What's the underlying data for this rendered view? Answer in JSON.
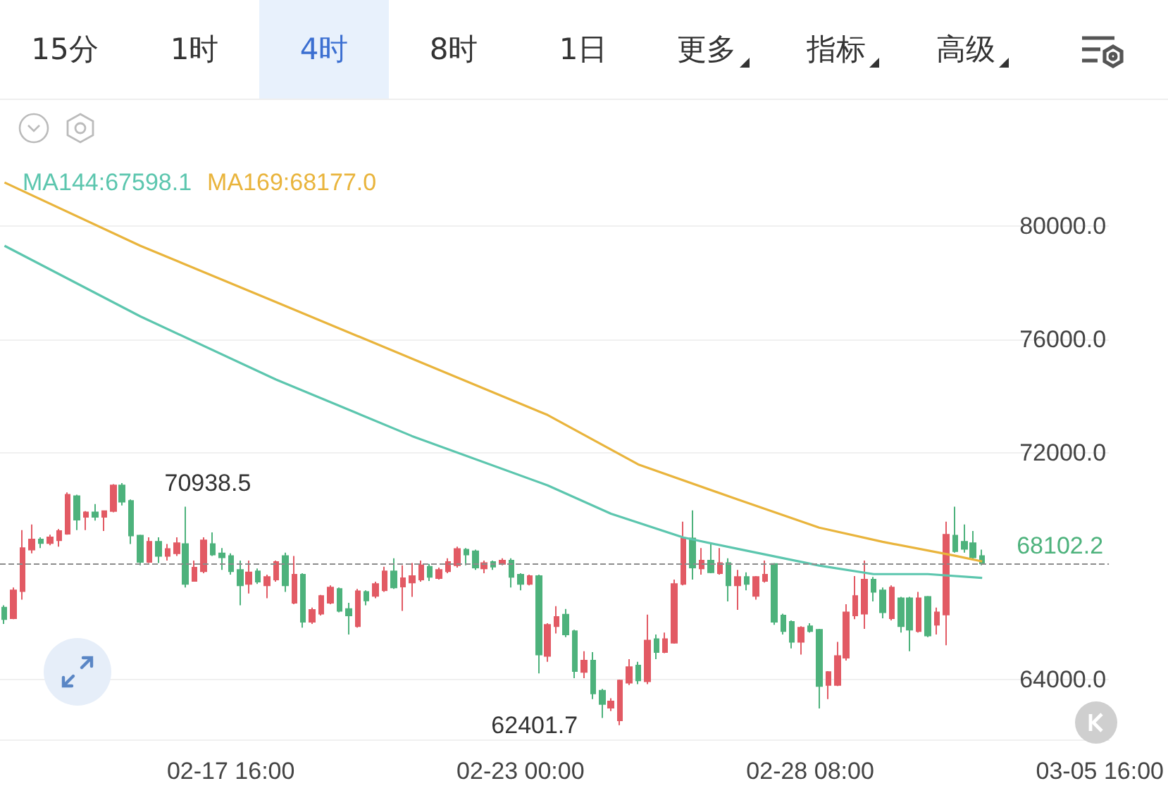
{
  "chart_data": {
    "type": "candlestick",
    "annotations": [
      "15分",
      "1时",
      "4时",
      "8时",
      "1日",
      "更多",
      "指标",
      "高级",
      {
        "text": "70938.5",
        "x": "--02-15T16:00",
        "y": 70938.5
      },
      {
        "text": "62401.7",
        "x": "--02-24T20:00",
        "y": 62401.7
      }
    ],
    "series": [
      {
        "x": [
          "--02-13T12:00",
          "--02-13T16:00",
          "--02-13T20:00",
          "--02-14T00:00",
          "--02-14T04:00",
          "--02-14T08:00",
          "--02-14T12:00",
          "--02-14T16:00",
          "--02-14T20:00",
          "--02-15T00:00",
          "--02-15T04:00",
          "--02-15T08:00",
          "--02-15T12:00",
          "--02-15T16:00",
          "--02-15T20:00",
          "--02-16T00:00",
          "--02-16T04:00",
          "--02-16T08:00",
          "--02-16T12:00",
          "--02-16T16:00",
          "--02-16T20:00",
          "--02-17T00:00",
          "--02-17T04:00",
          "--02-17T08:00",
          "--02-17T12:00",
          "--02-17T16:00",
          "--02-17T20:00",
          "--02-18T00:00",
          "--02-18T04:00",
          "--02-18T08:00",
          "--02-18T12:00",
          "--02-18T16:00",
          "--02-18T20:00",
          "--02-19T00:00",
          "--02-19T04:00",
          "--02-19T08:00",
          "--02-19T12:00",
          "--02-19T16:00",
          "--02-19T20:00",
          "--02-20T00:00",
          "--02-20T04:00",
          "--02-20T08:00",
          "--02-20T12:00",
          "--02-20T16:00",
          "--02-20T20:00",
          "--02-21T00:00",
          "--02-21T04:00",
          "--02-21T08:00",
          "--02-21T12:00",
          "--02-21T16:00",
          "--02-21T20:00",
          "--02-22T00:00",
          "--02-22T04:00",
          "--02-22T08:00",
          "--02-22T12:00",
          "--02-22T16:00",
          "--02-22T20:00",
          "--02-23T00:00",
          "--02-23T04:00",
          "--02-23T08:00",
          "--02-23T12:00",
          "--02-23T16:00",
          "--02-23T20:00",
          "--02-24T00:00",
          "--02-24T04:00",
          "--02-24T08:00",
          "--02-24T12:00",
          "--02-24T16:00",
          "--02-24T20:00",
          "--02-25T00:00",
          "--02-25T04:00",
          "--02-25T08:00",
          "--02-25T12:00",
          "--02-25T16:00",
          "--02-25T20:00",
          "--02-26T00:00",
          "--02-26T04:00",
          "--02-26T08:00",
          "--02-26T12:00",
          "--02-26T16:00",
          "--02-26T20:00",
          "--02-27T00:00",
          "--02-27T04:00",
          "--02-27T08:00",
          "--02-27T12:00",
          "--02-27T16:00",
          "--02-27T20:00",
          "--02-28T00:00",
          "--02-28T04:00",
          "--02-28T08:00",
          "--02-28T12:00",
          "--02-28T16:00",
          "--02-28T20:00",
          "--03-01T00:00",
          "--03-01T04:00",
          "--03-01T08:00",
          "--03-01T12:00",
          "--03-01T16:00",
          "--03-01T20:00",
          "--03-02T00:00",
          "--03-02T04:00",
          "--03-02T08:00",
          "--03-02T12:00",
          "--03-02T16:00",
          "--03-02T20:00",
          "--03-03T00:00",
          "--03-03T04:00",
          "--03-03T08:00",
          "--03-03T12:00"
        ],
        "ohlc": [
          [
            66550,
            66630,
            65970,
            66140
          ],
          [
            66170,
            67260,
            66140,
            67160
          ],
          [
            67130,
            69280,
            66830,
            68650
          ],
          [
            68590,
            69480,
            68460,
            68950
          ],
          [
            68950,
            69030,
            68650,
            68820
          ],
          [
            68820,
            69120,
            68750,
            69030
          ],
          [
            68920,
            69320,
            68700,
            69250
          ],
          [
            69150,
            70610,
            69120,
            70530
          ],
          [
            70480,
            70530,
            69280,
            69650
          ],
          [
            69750,
            69950,
            69280,
            69910
          ],
          [
            69910,
            70200,
            69620,
            69750
          ],
          [
            69750,
            69980,
            69250,
            69950
          ],
          [
            69950,
            70900,
            69910,
            70860
          ],
          [
            70860,
            70938.5,
            70150,
            70280
          ],
          [
            70310,
            70360,
            68790,
            69090
          ],
          [
            69090,
            69120,
            68040,
            68160
          ],
          [
            68160,
            69030,
            68120,
            68870
          ],
          [
            68870,
            69030,
            68120,
            68370
          ],
          [
            68370,
            68790,
            68210,
            68620
          ],
          [
            68460,
            69030,
            68370,
            68820
          ],
          [
            68790,
            70110,
            67260,
            67380
          ],
          [
            67490,
            68210,
            67460,
            67960
          ],
          [
            67830,
            69030,
            67760,
            68920
          ],
          [
            68790,
            69200,
            68370,
            68420
          ],
          [
            68460,
            68650,
            67880,
            68320
          ],
          [
            68370,
            68460,
            67710,
            67830
          ],
          [
            67880,
            68210,
            66630,
            67330
          ],
          [
            67380,
            68210,
            67050,
            67790
          ],
          [
            67830,
            67930,
            67380,
            67460
          ],
          [
            67330,
            67710,
            66880,
            67630
          ],
          [
            67540,
            68210,
            67460,
            68160
          ],
          [
            68370,
            68490,
            67100,
            67330
          ],
          [
            66720,
            68370,
            66670,
            67710
          ],
          [
            67710,
            67760,
            65840,
            66050
          ],
          [
            66050,
            66550,
            65970,
            66470
          ],
          [
            66330,
            67000,
            66270,
            66960
          ],
          [
            66720,
            67330,
            66670,
            67260
          ],
          [
            67210,
            67260,
            66380,
            66430
          ],
          [
            66500,
            66720,
            65600,
            66270
          ],
          [
            65890,
            67210,
            65840,
            67130
          ],
          [
            67100,
            67160,
            66630,
            66800
          ],
          [
            66960,
            67460,
            66880,
            67380
          ],
          [
            67160,
            67990,
            67100,
            67830
          ],
          [
            67830,
            68290,
            67210,
            67260
          ],
          [
            67290,
            68040,
            66430,
            67590
          ],
          [
            67430,
            68120,
            66930,
            67660
          ],
          [
            67540,
            68210,
            67460,
            68040
          ],
          [
            67990,
            68090,
            67490,
            67630
          ],
          [
            67590,
            67960,
            67540,
            67880
          ],
          [
            67830,
            68290,
            67760,
            68160
          ],
          [
            68040,
            68700,
            67960,
            68620
          ],
          [
            68590,
            68650,
            68040,
            68420
          ],
          [
            68540,
            68590,
            67880,
            67960
          ],
          [
            67930,
            68210,
            67760,
            68120
          ],
          [
            68160,
            68210,
            67880,
            67990
          ],
          [
            68090,
            68290,
            68040,
            68210
          ],
          [
            68210,
            68290,
            67260,
            67630
          ],
          [
            67710,
            67760,
            67160,
            67380
          ],
          [
            67380,
            67710,
            67330,
            67660
          ],
          [
            67660,
            67710,
            64230,
            64890
          ],
          [
            64840,
            66000,
            64640,
            65940
          ],
          [
            65890,
            66600,
            65640,
            66220
          ],
          [
            66300,
            66500,
            65510,
            65600
          ],
          [
            65720,
            65770,
            64060,
            64310
          ],
          [
            64280,
            65010,
            64060,
            64680
          ],
          [
            64680,
            64980,
            63320,
            63520
          ],
          [
            63620,
            63680,
            62660,
            63150
          ],
          [
            63020,
            63350,
            62900,
            63240
          ],
          [
            62570,
            64010,
            62401.7,
            63980
          ],
          [
            63900,
            64730,
            63820,
            64450
          ],
          [
            64510,
            64640,
            63850,
            63980
          ],
          [
            63950,
            66300,
            63850,
            65390
          ],
          [
            65440,
            65600,
            64730,
            64980
          ],
          [
            64980,
            65670,
            64940,
            65440
          ],
          [
            65310,
            67540,
            65280,
            67380
          ],
          [
            67380,
            69580,
            67330,
            68990
          ],
          [
            68990,
            69980,
            67540,
            67960
          ],
          [
            67930,
            68650,
            67710,
            68210
          ],
          [
            68210,
            68820,
            67760,
            67790
          ],
          [
            67760,
            68650,
            67710,
            68120
          ],
          [
            68120,
            68290,
            66770,
            67330
          ],
          [
            67330,
            67880,
            66470,
            67630
          ],
          [
            67630,
            67790,
            67160,
            67380
          ],
          [
            66960,
            67660,
            66830,
            67630
          ],
          [
            67490,
            68210,
            67430,
            67710
          ],
          [
            68090,
            68120,
            65940,
            66050
          ],
          [
            66270,
            66330,
            65600,
            65720
          ],
          [
            66050,
            66100,
            65110,
            65340
          ],
          [
            65340,
            65890,
            64890,
            65840
          ],
          [
            65890,
            66000,
            65670,
            65720
          ],
          [
            65770,
            65800,
            62990,
            63780
          ],
          [
            63820,
            64310,
            63320,
            64280
          ],
          [
            63820,
            65340,
            63780,
            64840
          ],
          [
            64780,
            66670,
            64680,
            66380
          ],
          [
            66270,
            67660,
            66140,
            66960
          ],
          [
            66330,
            68210,
            65800,
            67540
          ],
          [
            67540,
            67630,
            66770,
            67100
          ],
          [
            67160,
            67260,
            66170,
            66380
          ],
          [
            66170,
            67330,
            66100,
            67260
          ],
          [
            66880,
            66930,
            65670,
            65890
          ],
          [
            66880,
            66930,
            65010,
            65770
          ],
          [
            65720,
            67100,
            65670,
            66880
          ],
          [
            66930,
            66960,
            65510,
            65560
          ],
          [
            65940,
            66550,
            65600,
            66380
          ],
          [
            66300,
            69580,
            65220,
            69120
          ],
          [
            69090,
            70110,
            68490,
            68540
          ],
          [
            68870,
            69480,
            68490,
            68620
          ],
          [
            68820,
            69250,
            68260,
            68320
          ],
          [
            68370,
            68590,
            68040,
            68102.2
          ]
        ],
        "colors": [
          "#4db27c",
          "#e25a64",
          "#e25a64",
          "#e25a64",
          "#4db27c",
          "#e25a64",
          "#e25a64",
          "#e25a64",
          "#4db27c",
          "#e25a64",
          "#4db27c",
          "#e25a64",
          "#e25a64",
          "#4db27c",
          "#4db27c",
          "#4db27c",
          "#e25a64",
          "#4db27c",
          "#e25a64",
          "#e25a64",
          "#4db27c",
          "#e25a64",
          "#e25a64",
          "#4db27c",
          "#4db27c",
          "#4db27c",
          "#4db27c",
          "#e25a64",
          "#4db27c",
          "#e25a64",
          "#e25a64",
          "#4db27c",
          "#e25a64",
          "#4db27c",
          "#e25a64",
          "#e25a64",
          "#e25a64",
          "#4db27c",
          "#4db27c",
          "#e25a64",
          "#4db27c",
          "#e25a64",
          "#e25a64",
          "#4db27c",
          "#e25a64",
          "#e25a64",
          "#e25a64",
          "#4db27c",
          "#e25a64",
          "#e25a64",
          "#e25a64",
          "#4db27c",
          "#4db27c",
          "#e25a64",
          "#4db27c",
          "#e25a64",
          "#4db27c",
          "#4db27c",
          "#e25a64",
          "#4db27c",
          "#e25a64",
          "#e25a64",
          "#4db27c",
          "#4db27c",
          "#e25a64",
          "#4db27c",
          "#4db27c",
          "#e25a64",
          "#e25a64",
          "#e25a64",
          "#4db27c",
          "#e25a64",
          "#4db27c",
          "#e25a64",
          "#e25a64",
          "#e25a64",
          "#4db27c",
          "#e25a64",
          "#4db27c",
          "#e25a64",
          "#4db27c",
          "#e25a64",
          "#4db27c",
          "#e25a64",
          "#e25a64",
          "#4db27c",
          "#4db27c",
          "#4db27c",
          "#e25a64",
          "#4db27c",
          "#4db27c",
          "#e25a64",
          "#e25a64",
          "#e25a64",
          "#e25a64",
          "#e25a64",
          "#4db27c",
          "#4db27c",
          "#e25a64",
          "#4db27c",
          "#4db27c",
          "#e25a64",
          "#4db27c",
          "#e25a64",
          "#e25a64",
          "#4db27c",
          "#4db27c",
          "#4db27c",
          "#4db27c"
        ]
      },
      {
        "type": "line",
        "name": "MA144:67598.1",
        "color": "#5cc6ae",
        "x": [
          "--02-13T12:00",
          "--02-16T00:00",
          "--02-18T12:00",
          "--02-21T00:00",
          "--02-23T12:00",
          "--02-24T16:00",
          "--02-26T00:00",
          "--02-27T00:00",
          "--02-28T12:00",
          "--03-01T12:00",
          "--03-02T12:00",
          "--03-03T12:00"
        ],
        "values": [
          79310,
          76820,
          74590,
          72600,
          70860,
          69860,
          69020,
          68620,
          68030,
          67730,
          67730,
          67598.1
        ]
      },
      {
        "type": "line",
        "name": "MA169:68177.0",
        "color": "#e9b43c",
        "x": [
          "--02-13T12:00",
          "--02-16T00:00",
          "--02-18T12:00",
          "--02-21T00:00",
          "--02-23T12:00",
          "--02-25T04:00",
          "--02-27T00:00",
          "--02-28T12:00",
          "--03-01T16:00",
          "--03-03T00:00",
          "--03-03T12:00"
        ],
        "values": [
          81540,
          79310,
          77320,
          75330,
          73340,
          71600,
          70360,
          69370,
          68870,
          68380,
          68177.0
        ]
      }
    ],
    "xlim": [
      "--02-13T10:00",
      "--03-05T20:00"
    ],
    "xticks": [
      {
        "value": "--02-17T16:00",
        "label": "02-17 16:00"
      },
      {
        "value": "--02-23T00:00",
        "label": "02-23 00:00"
      },
      {
        "value": "--02-28T08:00",
        "label": "02-28 08:00"
      },
      {
        "value": "--03-05T16:00",
        "label": "03-05 16:00"
      }
    ],
    "ylim": [
      61900,
      84400
    ],
    "yticks": [
      {
        "value": 64000,
        "label": "64000.0"
      },
      {
        "value": 72000,
        "label": "72000.0"
      },
      {
        "value": 76000,
        "label": "76000.0"
      },
      {
        "value": 80000,
        "label": "80000.0"
      }
    ],
    "ref_lines": [
      {
        "axis": "y",
        "value": 68102.2,
        "label": "68102.2",
        "color": "#8c8c8c",
        "line_style": "dashed"
      }
    ],
    "grid": "y",
    "legend": "top left",
    "marker": "none"
  }
}
